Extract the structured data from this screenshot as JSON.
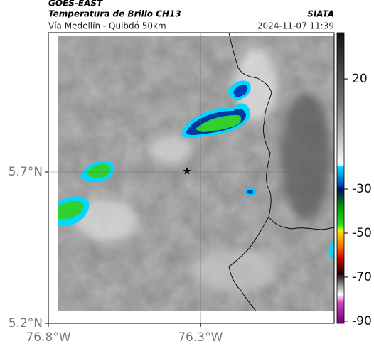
{
  "header": {
    "agency": "GOES-EAST",
    "title": "Temperatura de Brillo CH13",
    "subtitle": "Vía Medellín - Quibdó 50km",
    "brand": "SIATA",
    "timestamp": "2024-11-07 11:39"
  },
  "map": {
    "xlim": [
      -76.8,
      -75.86
    ],
    "ylim": [
      5.2,
      6.16
    ],
    "xticks": [
      {
        "value": -76.8,
        "label": "76.8°W"
      },
      {
        "value": -76.3,
        "label": "76.3°W"
      }
    ],
    "yticks": [
      {
        "value": 5.2,
        "label": "5.2°N"
      },
      {
        "value": 5.7,
        "label": "5.7°N"
      }
    ],
    "grid": true
  },
  "colorbar": {
    "clim": [
      -91,
      41
    ],
    "ticks": [
      20,
      -30,
      -50,
      -70,
      -90
    ]
  }
}
